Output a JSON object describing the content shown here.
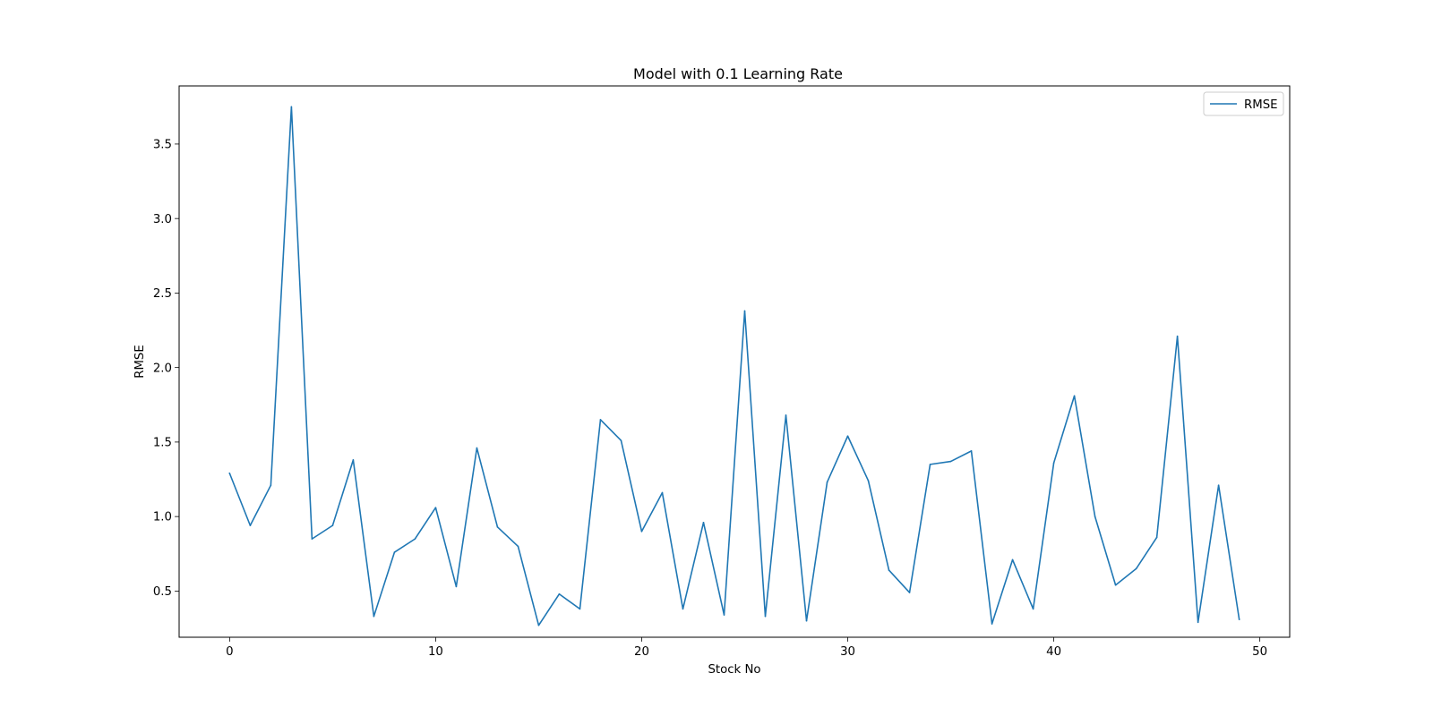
{
  "chart_data": {
    "type": "line",
    "title": "Model with 0.1 Learning Rate",
    "xlabel": "Stock No",
    "ylabel": "RMSE",
    "xlim": [
      -2.45,
      51.45
    ],
    "ylim": [
      0.19,
      3.89
    ],
    "xticks": [
      0,
      10,
      20,
      30,
      40,
      50
    ],
    "xtick_labels": [
      "0",
      "10",
      "20",
      "30",
      "40",
      "50"
    ],
    "yticks": [
      0.5,
      1.0,
      1.5,
      2.0,
      2.5,
      3.0,
      3.5
    ],
    "ytick_labels": [
      "0.5",
      "1.0",
      "1.5",
      "2.0",
      "2.5",
      "3.0",
      "3.5"
    ],
    "grid": false,
    "legend_position": "top-right",
    "series": [
      {
        "name": "RMSE",
        "color": "#1f77b4",
        "x": [
          0,
          1,
          2,
          3,
          4,
          5,
          6,
          7,
          8,
          9,
          10,
          11,
          12,
          13,
          14,
          15,
          16,
          17,
          18,
          19,
          20,
          21,
          22,
          23,
          24,
          25,
          26,
          27,
          28,
          29,
          30,
          31,
          32,
          33,
          34,
          35,
          36,
          37,
          38,
          39,
          40,
          41,
          42,
          43,
          44,
          45,
          46,
          47,
          48,
          49
        ],
        "values": [
          1.29,
          0.94,
          1.21,
          3.75,
          0.85,
          0.94,
          1.38,
          0.33,
          0.76,
          0.85,
          1.06,
          0.53,
          1.46,
          0.93,
          0.8,
          0.27,
          0.48,
          0.38,
          1.65,
          1.51,
          0.9,
          1.16,
          0.38,
          0.96,
          0.34,
          2.38,
          0.33,
          1.68,
          0.3,
          1.23,
          1.54,
          1.24,
          0.64,
          0.49,
          1.35,
          1.37,
          1.44,
          0.28,
          0.71,
          0.38,
          1.36,
          1.81,
          1.0,
          0.54,
          0.65,
          0.86,
          2.21,
          0.29,
          1.21,
          0.31
        ]
      }
    ]
  }
}
